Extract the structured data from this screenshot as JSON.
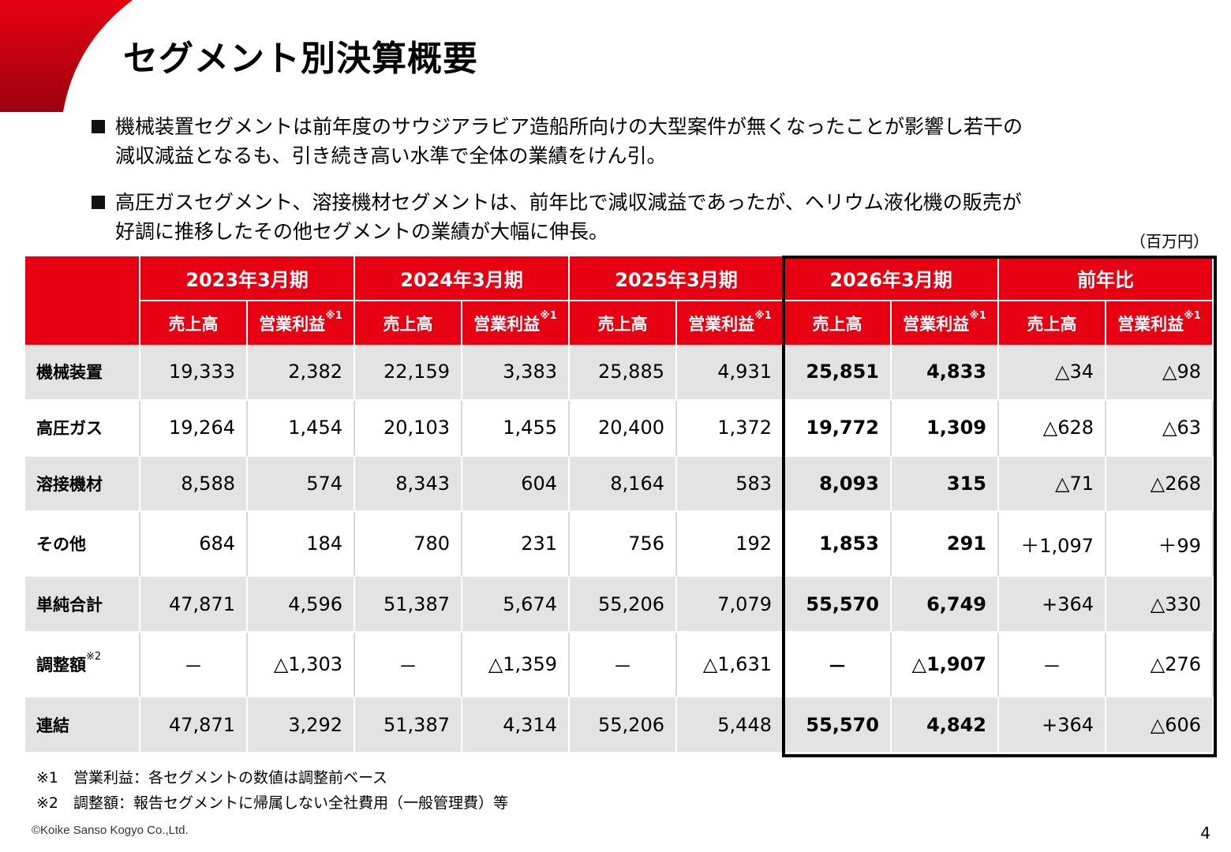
{
  "title": "セグメント別決算概要",
  "brand_color": "#e60012",
  "bullets": [
    {
      "lines": [
        "機械装置セグメントは前年度のサウジアラビア造船所向けの大型案件が無くなったことが影響し若干の",
        "減収減益となるも、引き続き高い水準で全体の業績をけん引。"
      ]
    },
    {
      "lines": [
        "高圧ガスセグメント、溶接機材セグメントは、前年比で減収減益であったが、ヘリウム液化機の販売が",
        "好調に推移したその他セグメントの業績が大幅に伸長。"
      ]
    }
  ],
  "unit": "（百万円）",
  "table": {
    "periods": [
      "2023年3月期",
      "2024年3月期",
      "2025年3月期",
      "2026年3月期",
      "前年比"
    ],
    "sub_sales": "売上高",
    "sub_op": "営業利益",
    "note_mark_1": "※1",
    "note_mark_2": "※2",
    "rows": [
      {
        "label": "機械装置",
        "values": [
          "19,333",
          "2,382",
          "22,159",
          "3,383",
          "25,885",
          "4,931",
          "25,851",
          "4,833",
          "△34",
          "△98"
        ]
      },
      {
        "label": "高圧ガス",
        "values": [
          "19,264",
          "1,454",
          "20,103",
          "1,455",
          "20,400",
          "1,372",
          "19,772",
          "1,309",
          "△628",
          "△63"
        ]
      },
      {
        "label": "溶接機材",
        "values": [
          "8,588",
          "574",
          "8,343",
          "604",
          "8,164",
          "583",
          "8,093",
          "315",
          "△71",
          "△268"
        ]
      },
      {
        "label": "その他",
        "values": [
          "684",
          "184",
          "780",
          "231",
          "756",
          "192",
          "1,853",
          "291",
          "＋1,097",
          "＋99"
        ]
      },
      {
        "label": "単純合計",
        "values": [
          "47,871",
          "4,596",
          "51,387",
          "5,674",
          "55,206",
          "7,079",
          "55,570",
          "6,749",
          "+364",
          "△330"
        ]
      },
      {
        "label": "調整額",
        "values": [
          "－",
          "△1,303",
          "－",
          "△1,359",
          "－",
          "△1,631",
          "－",
          "△1,907",
          "－",
          "△276"
        ]
      },
      {
        "label": "連結",
        "values": [
          "47,871",
          "3,292",
          "51,387",
          "4,314",
          "55,206",
          "5,448",
          "55,570",
          "4,842",
          "+364",
          "△606"
        ]
      }
    ]
  },
  "footnotes": [
    "※1　営業利益：各セグメントの数値は調整前ベース",
    "※2　調整額：報告セグメントに帰属しない全社費用（一般管理費）等"
  ],
  "copyright": "©Koike Sanso Kogyo Co.,Ltd.",
  "page_number": "4"
}
